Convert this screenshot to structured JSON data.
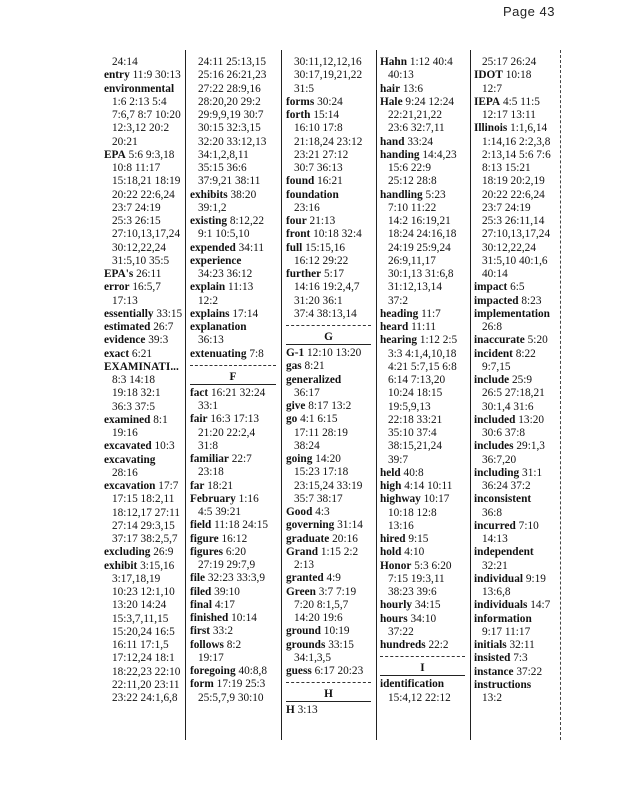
{
  "page": {
    "label": "Page 43"
  },
  "columns": [
    [
      {
        "r": "24:14"
      },
      {
        "t": "entry",
        "r": "11:9 30:13"
      },
      {
        "t": "environmental",
        "r": ""
      },
      {
        "r": "1:6 2:13 5:4"
      },
      {
        "r": "7:6,7 8:7 10:20"
      },
      {
        "r": "12:3,12 20:2"
      },
      {
        "r": "20:21"
      },
      {
        "t": "EPA",
        "r": "5:6 9:3,18"
      },
      {
        "r": "10:8 11:17"
      },
      {
        "r": "15:18,21 18:19"
      },
      {
        "r": "20:22 22:6,24"
      },
      {
        "r": "23:7 24:19"
      },
      {
        "r": "25:3 26:15"
      },
      {
        "r": "27:10,13,17,24"
      },
      {
        "r": "30:12,22,24"
      },
      {
        "r": "31:5,10 35:5"
      },
      {
        "t": "EPA's",
        "r": "26:11"
      },
      {
        "t": "error",
        "r": "16:5,7"
      },
      {
        "r": "17:13"
      },
      {
        "t": "essentially",
        "r": "33:15"
      },
      {
        "t": "estimated",
        "r": "26:7"
      },
      {
        "t": "evidence",
        "r": "39:3"
      },
      {
        "t": "exact",
        "r": "6:21"
      },
      {
        "t": "EXAMINATI...",
        "r": ""
      },
      {
        "r": "8:3 14:18"
      },
      {
        "r": "19:18 32:1"
      },
      {
        "r": "36:3 37:5"
      },
      {
        "t": "examined",
        "r": "8:1"
      },
      {
        "r": "19:16"
      },
      {
        "t": "excavated",
        "r": "10:3"
      },
      {
        "t": "excavating",
        "r": ""
      },
      {
        "r": "28:16"
      },
      {
        "t": "excavation",
        "r": "17:7"
      },
      {
        "r": "17:15 18:2,11"
      },
      {
        "r": "18:12,17 27:11"
      },
      {
        "r": "27:14 29:3,15"
      },
      {
        "r": "37:17 38:2,5,7"
      },
      {
        "t": "excluding",
        "r": "26:9"
      },
      {
        "t": "exhibit",
        "r": "3:15,16"
      },
      {
        "r": "3:17,18,19"
      },
      {
        "r": "10:23 12:1,10"
      },
      {
        "r": "13:20 14:24"
      },
      {
        "r": "15:3,7,11,15"
      },
      {
        "r": "15:20,24 16:5"
      },
      {
        "r": "16:11 17:1,5"
      },
      {
        "r": "17:12,24 18:1"
      },
      {
        "r": "18:22,23 22:10"
      },
      {
        "r": "22:11,20 23:11"
      },
      {
        "r": "23:22 24:1,6,8"
      }
    ],
    [
      {
        "r": "24:11 25:13,15"
      },
      {
        "r": "25:16 26:21,23"
      },
      {
        "r": "27:22 28:9,16"
      },
      {
        "r": "28:20,20 29:2"
      },
      {
        "r": "29:9,9,19 30:7"
      },
      {
        "r": "30:15 32:3,15"
      },
      {
        "r": "32:20 33:12,13"
      },
      {
        "r": "34:1,2,8,11"
      },
      {
        "r": "35:15 36:6"
      },
      {
        "r": "37:9,21 38:11"
      },
      {
        "t": "exhibits",
        "r": "38:20"
      },
      {
        "r": "39:1,2"
      },
      {
        "t": "existing",
        "r": "8:12,22"
      },
      {
        "r": "9:1 10:5,10"
      },
      {
        "t": "expended",
        "r": "34:11"
      },
      {
        "t": "experience",
        "r": ""
      },
      {
        "r": "34:23 36:12"
      },
      {
        "t": "explain",
        "r": "11:13"
      },
      {
        "r": "12:2"
      },
      {
        "t": "explains",
        "r": "17:14"
      },
      {
        "t": "explanation",
        "r": ""
      },
      {
        "r": "36:13"
      },
      {
        "t": "extenuating",
        "r": "7:8"
      },
      {
        "h": "F"
      },
      {
        "t": "fact",
        "r": "16:21 32:24"
      },
      {
        "r": "33:1"
      },
      {
        "t": "fair",
        "r": "16:3 17:13"
      },
      {
        "r": "21:20 22:2,4"
      },
      {
        "r": "31:8"
      },
      {
        "t": "familiar",
        "r": "22:7"
      },
      {
        "r": "23:18"
      },
      {
        "t": "far",
        "r": "18:21"
      },
      {
        "t": "February",
        "r": "1:16"
      },
      {
        "r": "4:5 39:21"
      },
      {
        "t": "field",
        "r": "11:18 24:15"
      },
      {
        "t": "figure",
        "r": "16:12"
      },
      {
        "t": "figures",
        "r": "6:20"
      },
      {
        "r": "27:19 29:7,9"
      },
      {
        "t": "file",
        "r": "32:23 33:3,9"
      },
      {
        "t": "filed",
        "r": "39:10"
      },
      {
        "t": "final",
        "r": "4:17"
      },
      {
        "t": "finished",
        "r": "10:14"
      },
      {
        "t": "first",
        "r": "33:2"
      },
      {
        "t": "follows",
        "r": "8:2"
      },
      {
        "r": "19:17"
      },
      {
        "t": "foregoing",
        "r": "40:8,8"
      },
      {
        "t": "form",
        "r": "17:19 25:3"
      },
      {
        "r": "25:5,7,9 30:10"
      }
    ],
    [
      {
        "r": "30:11,12,12,16"
      },
      {
        "r": "30:17,19,21,22"
      },
      {
        "r": "31:5"
      },
      {
        "t": "forms",
        "r": "30:24"
      },
      {
        "t": "forth",
        "r": "15:14"
      },
      {
        "r": "16:10 17:8"
      },
      {
        "r": "21:18,24 23:12"
      },
      {
        "r": "23:21 27:12"
      },
      {
        "r": "30:7 36:13"
      },
      {
        "t": "found",
        "r": "16:21"
      },
      {
        "t": "foundation",
        "r": ""
      },
      {
        "r": "23:16"
      },
      {
        "t": "four",
        "r": "21:13"
      },
      {
        "t": "front",
        "r": "10:18 32:4"
      },
      {
        "t": "full",
        "r": "15:15,16"
      },
      {
        "r": "16:12 29:22"
      },
      {
        "t": "further",
        "r": "5:17"
      },
      {
        "r": "14:16 19:2,4,7"
      },
      {
        "r": "31:20 36:1"
      },
      {
        "r": "37:4 38:13,14"
      },
      {
        "h": "G"
      },
      {
        "t": "G-1",
        "r": "12:10 13:20"
      },
      {
        "t": "gas",
        "r": "8:21"
      },
      {
        "t": "generalized",
        "r": ""
      },
      {
        "r": "36:17"
      },
      {
        "t": "give",
        "r": "8:17 13:2"
      },
      {
        "t": "go",
        "r": "4:1 6:15"
      },
      {
        "r": "17:11 28:19"
      },
      {
        "r": "38:24"
      },
      {
        "t": "going",
        "r": "14:20"
      },
      {
        "r": "15:23 17:18"
      },
      {
        "r": "23:15,24 33:19"
      },
      {
        "r": "35:7 38:17"
      },
      {
        "t": "Good",
        "r": "4:3"
      },
      {
        "t": "governing",
        "r": "31:14"
      },
      {
        "t": "graduate",
        "r": "20:16"
      },
      {
        "t": "Grand",
        "r": "1:15 2:2"
      },
      {
        "r": "2:13"
      },
      {
        "t": "granted",
        "r": "4:9"
      },
      {
        "t": "Green",
        "r": "3:7 7:19"
      },
      {
        "r": "7:20 8:1,5,7"
      },
      {
        "r": "14:20 19:6"
      },
      {
        "t": "ground",
        "r": "10:19"
      },
      {
        "t": "grounds",
        "r": "33:15"
      },
      {
        "r": "34:1,3,5"
      },
      {
        "t": "guess",
        "r": "6:17 20:23"
      },
      {
        "h": "H"
      },
      {
        "t": "H",
        "r": "3:13"
      }
    ],
    [
      {
        "t": "Hahn",
        "r": "1:12 40:4"
      },
      {
        "r": "40:13"
      },
      {
        "t": "hair",
        "r": "13:6"
      },
      {
        "t": "Hale",
        "r": "9:24 12:24"
      },
      {
        "r": "22:21,21,22"
      },
      {
        "r": "23:6 32:7,11"
      },
      {
        "t": "hand",
        "r": "33:24"
      },
      {
        "t": "handing",
        "r": "14:4,23"
      },
      {
        "r": "15:6 22:9"
      },
      {
        "r": "25:12 28:8"
      },
      {
        "t": "handling",
        "r": "5:23"
      },
      {
        "r": "7:10 11:22"
      },
      {
        "r": "14:2 16:19,21"
      },
      {
        "r": "18:24 24:16,18"
      },
      {
        "r": "24:19 25:9,24"
      },
      {
        "r": "26:9,11,17"
      },
      {
        "r": "30:1,13 31:6,8"
      },
      {
        "r": "31:12,13,14"
      },
      {
        "r": "37:2"
      },
      {
        "t": "heading",
        "r": "11:7"
      },
      {
        "t": "heard",
        "r": "11:11"
      },
      {
        "t": "hearing",
        "r": "1:12 2:5"
      },
      {
        "r": "3:3 4:1,4,10,18"
      },
      {
        "r": "4:21 5:7,15 6:8"
      },
      {
        "r": "6:14 7:13,20"
      },
      {
        "r": "10:24 18:15"
      },
      {
        "r": "19:5,9,13"
      },
      {
        "r": "22:18 33:21"
      },
      {
        "r": "35:10 37:4"
      },
      {
        "r": "38:15,21,24"
      },
      {
        "r": "39:7"
      },
      {
        "t": "held",
        "r": "40:8"
      },
      {
        "t": "high",
        "r": "4:14 10:11"
      },
      {
        "t": "highway",
        "r": "10:17"
      },
      {
        "r": "10:18 12:8"
      },
      {
        "r": "13:16"
      },
      {
        "t": "hired",
        "r": "9:15"
      },
      {
        "t": "hold",
        "r": "4:10"
      },
      {
        "t": "Honor",
        "r": "5:3 6:20"
      },
      {
        "r": "7:15 19:3,11"
      },
      {
        "r": "38:23 39:6"
      },
      {
        "t": "hourly",
        "r": "34:15"
      },
      {
        "t": "hours",
        "r": "34:10"
      },
      {
        "r": "37:22"
      },
      {
        "t": "hundreds",
        "r": "22:2"
      },
      {
        "h": "I"
      },
      {
        "t": "identification",
        "r": ""
      },
      {
        "r": "15:4,12 22:12"
      }
    ],
    [
      {
        "r": "25:17 26:24"
      },
      {
        "t": "IDOT",
        "r": "10:18"
      },
      {
        "r": "12:7"
      },
      {
        "t": "IEPA",
        "r": "4:5 11:5"
      },
      {
        "r": "12:17 13:11"
      },
      {
        "t": "Illinois",
        "r": "1:1,6,14"
      },
      {
        "r": "1:14,16 2:2,3,8"
      },
      {
        "r": "2:13,14 5:6 7:6"
      },
      {
        "r": "8:13 15:21"
      },
      {
        "r": "18:19 20:2,19"
      },
      {
        "r": "20:22 22:6,24"
      },
      {
        "r": "23:7 24:19"
      },
      {
        "r": "25:3 26:11,14"
      },
      {
        "r": "27:10,13,17,24"
      },
      {
        "r": "30:12,22,24"
      },
      {
        "r": "31:5,10 40:1,6"
      },
      {
        "r": "40:14"
      },
      {
        "t": "impact",
        "r": "6:5"
      },
      {
        "t": "impacted",
        "r": "8:23"
      },
      {
        "t": "implementation",
        "r": ""
      },
      {
        "r": "26:8"
      },
      {
        "t": "inaccurate",
        "r": "5:20"
      },
      {
        "t": "incident",
        "r": "8:22"
      },
      {
        "r": "9:7,15"
      },
      {
        "t": "include",
        "r": "25:9"
      },
      {
        "r": "26:5 27:18,21"
      },
      {
        "r": "30:1,4 31:6"
      },
      {
        "t": "included",
        "r": "13:20"
      },
      {
        "r": "30:6 37:8"
      },
      {
        "t": "includes",
        "r": "29:1,3"
      },
      {
        "r": "36:7,20"
      },
      {
        "t": "including",
        "r": "31:1"
      },
      {
        "r": "36:24 37:2"
      },
      {
        "t": "inconsistent",
        "r": ""
      },
      {
        "r": "36:8"
      },
      {
        "t": "incurred",
        "r": "7:10"
      },
      {
        "r": "14:13"
      },
      {
        "t": "independent",
        "r": ""
      },
      {
        "r": "32:21"
      },
      {
        "t": "individual",
        "r": "9:19"
      },
      {
        "r": "13:6,8"
      },
      {
        "t": "individuals",
        "r": "14:7"
      },
      {
        "t": "information",
        "r": ""
      },
      {
        "r": "9:17 11:17"
      },
      {
        "t": "initials",
        "r": "32:11"
      },
      {
        "t": "insisted",
        "r": "7:3"
      },
      {
        "t": "instance",
        "r": "37:22"
      },
      {
        "t": "instructions",
        "r": ""
      },
      {
        "r": "13:2"
      }
    ]
  ]
}
